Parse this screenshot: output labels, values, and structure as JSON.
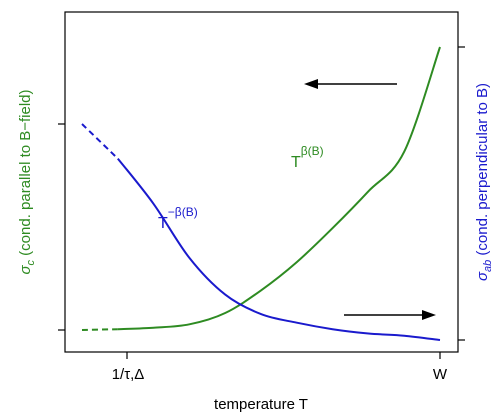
{
  "chart_data": {
    "type": "line",
    "xlabel": "temperature T",
    "ylabel_left": {
      "symbol": "σ",
      "subscript": "c",
      "text": " (cond. parallel to B−field)"
    },
    "ylabel_right": {
      "symbol": "σ",
      "subscript": "ab",
      "text": " (cond. perpendicular to B)"
    },
    "x_ticks": [
      "1/τ,Δ",
      "W"
    ],
    "colors": {
      "sigma_c": "#2e8b22",
      "sigma_ab": "#1a1acd",
      "axis": "#000000"
    },
    "series": [
      {
        "key": "sigma_c",
        "axis": "left",
        "label_base": "T",
        "label_exponent": "β(B)",
        "x": [
          0.0,
          0.1,
          0.2,
          0.3,
          0.4,
          0.5,
          0.6,
          0.7,
          0.8,
          0.9,
          1.0
        ],
        "y": [
          0.0,
          0.003,
          0.008,
          0.02,
          0.06,
          0.14,
          0.24,
          0.36,
          0.49,
          0.63,
          1.0
        ]
      },
      {
        "key": "sigma_ab",
        "axis": "right",
        "label_base": "T",
        "label_exponent": "−β(B)",
        "x": [
          0.0,
          0.1,
          0.2,
          0.3,
          0.4,
          0.5,
          0.6,
          0.7,
          0.8,
          0.9,
          1.0
        ],
        "y": [
          1.0,
          0.84,
          0.63,
          0.38,
          0.21,
          0.12,
          0.08,
          0.05,
          0.03,
          0.02,
          0.0
        ]
      }
    ],
    "arrows": [
      "left-pointing arrow (upper right, toward σc axis)",
      "right-pointing arrow (lower right, toward σab axis)"
    ]
  }
}
